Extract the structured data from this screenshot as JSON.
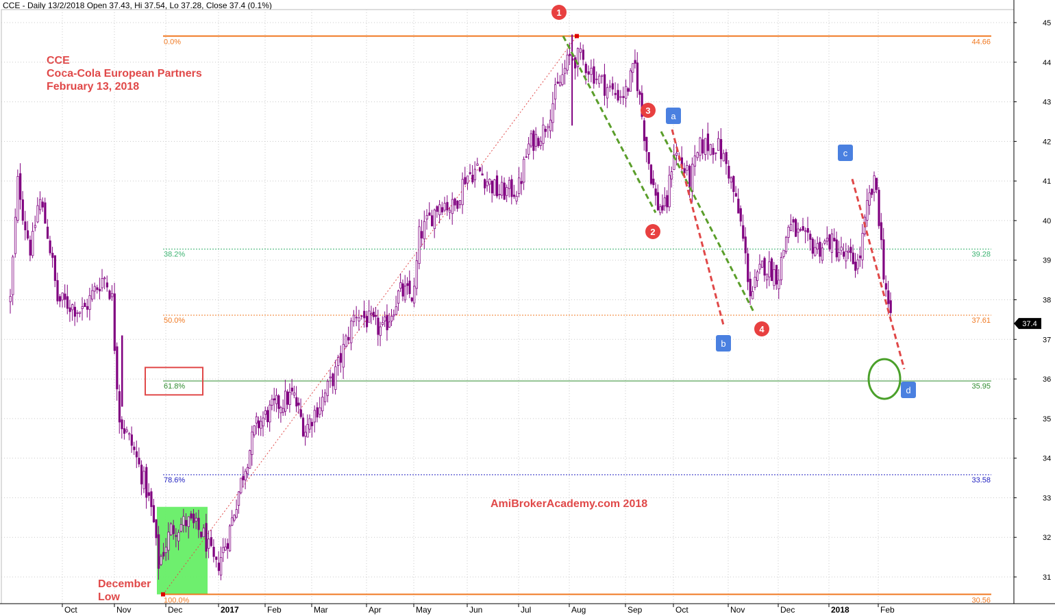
{
  "header": "CCE - Daily 13/2/2018 Open 37.43, Hi 37.54, Lo 37.28, Close 37.4 (0.1%)",
  "annotation_title": [
    "CCE",
    "Coca-Cola European Partners",
    "February 13, 2018"
  ],
  "low_label": [
    "December",
    "Low"
  ],
  "watermark": "AmiBrokerAcademy.com  2018",
  "colors": {
    "candle": "#800080",
    "fib_major": "#f07820",
    "fib_382": "#3cb371",
    "fib_618": "#2e8b2e",
    "fib_786": "#2020c0",
    "trend_green": "#5a9e2a",
    "trend_red": "#e04848",
    "box_green": "#66ee66",
    "box_red": "#e04848",
    "marker_red": "#e84040",
    "marker_blue": "#4a80e0",
    "circle": "#4aa02a"
  },
  "chart_data": {
    "type": "candlestick",
    "symbol": "CCE",
    "ylim": [
      30.3,
      45.25
    ],
    "y_ticks": [
      31,
      32,
      33,
      34,
      35,
      36,
      37,
      38,
      39,
      40,
      41,
      42,
      43,
      44,
      45
    ],
    "x_labels": [
      {
        "label": "Oct",
        "x": 0
      },
      {
        "label": "Nov",
        "x": 1
      },
      {
        "label": "Dec",
        "x": 2
      },
      {
        "label": "2017",
        "x": 3,
        "bold": true
      },
      {
        "label": "Feb",
        "x": 4
      },
      {
        "label": "Mar",
        "x": 5
      },
      {
        "label": "Apr",
        "x": 6
      },
      {
        "label": "May",
        "x": 7
      },
      {
        "label": "Jun",
        "x": 8
      },
      {
        "label": "Jul",
        "x": 9
      },
      {
        "label": "Aug",
        "x": 10
      },
      {
        "label": "Sep",
        "x": 11
      },
      {
        "label": "Oct",
        "x": 12
      },
      {
        "label": "Nov",
        "x": 13
      },
      {
        "label": "Dec",
        "x": 14
      },
      {
        "label": "2018",
        "x": 15,
        "bold": true
      },
      {
        "label": "Feb",
        "x": 16
      }
    ],
    "last_close": "37.4",
    "fib_levels": [
      {
        "pct": "0.0%",
        "value": 44.66,
        "label": "44.66",
        "style": "major"
      },
      {
        "pct": "38.2%",
        "value": 39.28,
        "label": "39.28",
        "style": "382"
      },
      {
        "pct": "50.0%",
        "value": 37.61,
        "label": "37.61",
        "style": "500"
      },
      {
        "pct": "61.8%",
        "value": 35.95,
        "label": "35.95",
        "style": "618"
      },
      {
        "pct": "78.6%",
        "value": 33.58,
        "label": "33.58",
        "style": "786"
      },
      {
        "pct": "100.0%",
        "value": 30.56,
        "label": "30.56",
        "style": "major"
      }
    ],
    "price_path": [
      [
        -1.0,
        38.0
      ],
      [
        -0.85,
        41.1
      ],
      [
        -0.75,
        40.1
      ],
      [
        -0.6,
        39.2
      ],
      [
        -0.45,
        40.6
      ],
      [
        -0.3,
        39.8
      ],
      [
        -0.2,
        39.0
      ],
      [
        -0.1,
        38.0
      ],
      [
        0.1,
        37.9
      ],
      [
        0.4,
        37.7
      ],
      [
        0.6,
        38.2
      ],
      [
        0.8,
        38.6
      ],
      [
        0.95,
        38.1
      ],
      [
        1.0,
        36.9
      ],
      [
        1.1,
        35.0
      ],
      [
        1.35,
        34.3
      ],
      [
        1.6,
        33.3
      ],
      [
        1.75,
        32.5
      ],
      [
        1.85,
        31.3
      ],
      [
        2.1,
        32.2
      ],
      [
        2.4,
        32.4
      ],
      [
        2.7,
        32.1
      ],
      [
        2.95,
        31.2
      ],
      [
        3.2,
        32.0
      ],
      [
        3.5,
        33.5
      ],
      [
        3.8,
        34.8
      ],
      [
        4.2,
        35.3
      ],
      [
        4.6,
        35.6
      ],
      [
        4.85,
        34.7
      ],
      [
        5.2,
        35.5
      ],
      [
        5.45,
        36.2
      ],
      [
        5.8,
        37.7
      ],
      [
        6.1,
        37.4
      ],
      [
        6.35,
        37.2
      ],
      [
        6.7,
        38.2
      ],
      [
        7.0,
        38.1
      ],
      [
        7.1,
        39.6
      ],
      [
        7.5,
        40.5
      ],
      [
        7.75,
        40.3
      ],
      [
        7.95,
        41.1
      ],
      [
        8.2,
        41.3
      ],
      [
        8.6,
        40.7
      ],
      [
        9.0,
        40.8
      ],
      [
        9.2,
        41.9
      ],
      [
        9.5,
        42.3
      ],
      [
        9.7,
        43.1
      ],
      [
        10.0,
        44.1
      ],
      [
        10.2,
        44.1
      ],
      [
        10.5,
        43.6
      ],
      [
        10.8,
        43.2
      ],
      [
        11.0,
        43.2
      ],
      [
        11.2,
        43.9
      ],
      [
        11.45,
        41.7
      ],
      [
        11.65,
        40.4
      ],
      [
        11.85,
        40.3
      ],
      [
        12.0,
        41.8
      ],
      [
        12.3,
        41.0
      ],
      [
        12.5,
        41.9
      ],
      [
        12.8,
        41.9
      ],
      [
        13.0,
        41.3
      ],
      [
        13.25,
        39.9
      ],
      [
        13.45,
        38.1
      ],
      [
        13.7,
        38.9
      ],
      [
        14.0,
        38.6
      ],
      [
        14.2,
        39.9
      ],
      [
        14.5,
        39.5
      ],
      [
        14.8,
        39.3
      ],
      [
        15.0,
        39.5
      ],
      [
        15.3,
        39.1
      ],
      [
        15.6,
        38.9
      ],
      [
        15.8,
        40.5
      ],
      [
        15.95,
        41.0
      ],
      [
        16.1,
        38.8
      ],
      [
        16.25,
        37.4
      ]
    ],
    "wave_markers": [
      {
        "id": "1",
        "shape": "circle"
      },
      {
        "id": "2",
        "shape": "circle"
      },
      {
        "id": "3",
        "shape": "circle"
      },
      {
        "id": "4",
        "shape": "circle"
      },
      {
        "id": "a",
        "shape": "square"
      },
      {
        "id": "b",
        "shape": "square"
      },
      {
        "id": "c",
        "shape": "square"
      },
      {
        "id": "d",
        "shape": "square"
      }
    ]
  }
}
